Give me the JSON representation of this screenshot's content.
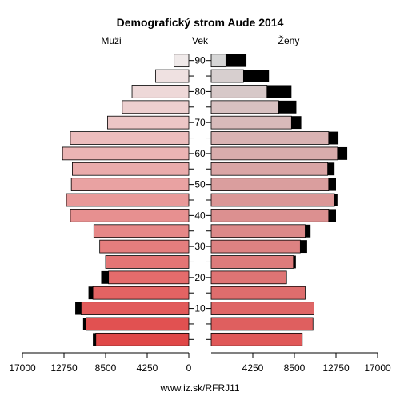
{
  "chart_data": {
    "type": "bar",
    "title": "Demografický strom Aude 2014",
    "left_label": "Muži",
    "center_label": "Vek",
    "right_label": "Ženy",
    "source": "www.iz.sk/RFRJ11",
    "xlim": [
      0,
      17000
    ],
    "x_ticks": [
      17000,
      12750,
      8500,
      4250,
      0,
      4250,
      8500,
      12750,
      17000
    ],
    "x_tick_labels": [
      "17000",
      "12750",
      "8500",
      "4250",
      "0",
      "4250",
      "8500",
      "12750",
      "17000"
    ],
    "age_tick_labels": [
      "10",
      "20",
      "30",
      "40",
      "50",
      "60",
      "70",
      "80",
      "90"
    ],
    "age_groups": [
      "0-4",
      "5-9",
      "10-14",
      "15-19",
      "20-24",
      "25-29",
      "30-34",
      "35-39",
      "40-44",
      "45-49",
      "50-54",
      "55-59",
      "60-64",
      "65-69",
      "70-74",
      "75-79",
      "80-84",
      "85-89",
      "90+"
    ],
    "series": [
      {
        "name": "Muži",
        "values": [
          9500,
          10500,
          11000,
          9800,
          8200,
          8500,
          9100,
          9700,
          12100,
          12500,
          12000,
          11900,
          12900,
          12100,
          8300,
          6800,
          5800,
          3400,
          1500
        ],
        "excess": [
          300,
          300,
          600,
          450,
          750,
          0,
          0,
          0,
          0,
          0,
          0,
          0,
          0,
          0,
          0,
          0,
          0,
          0,
          0
        ]
      },
      {
        "name": "Ženy",
        "values": [
          9300,
          10400,
          10500,
          9600,
          7700,
          8400,
          9100,
          9600,
          12000,
          12600,
          12000,
          11900,
          12900,
          12000,
          8200,
          6900,
          5700,
          3300,
          1500
        ],
        "excess": [
          0,
          0,
          0,
          0,
          0,
          250,
          700,
          550,
          750,
          300,
          750,
          700,
          1000,
          1000,
          1000,
          1800,
          2500,
          2600,
          2100
        ]
      }
    ]
  }
}
